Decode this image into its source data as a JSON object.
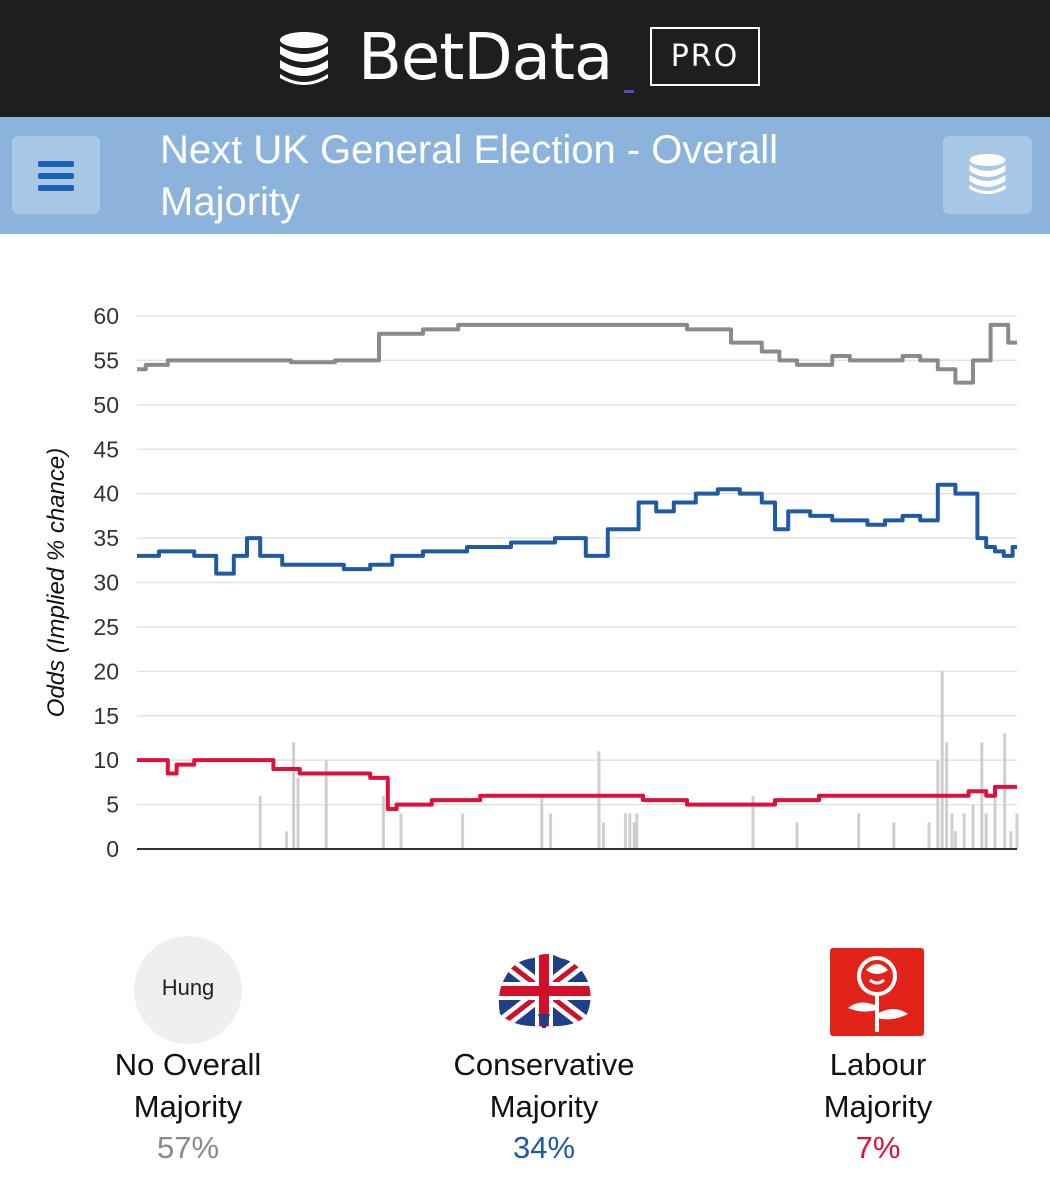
{
  "brand": {
    "name": "BetData",
    "badge": "PRO"
  },
  "page": {
    "title": "Next UK General Election - Overall Majority"
  },
  "icons": {
    "menu": "menu-icon",
    "data": "database-icon",
    "logo": "database-icon"
  },
  "chart_data": {
    "type": "line",
    "ylabel": "Odds (Implied % chance)",
    "xlabel": "",
    "ylim": [
      0,
      60
    ],
    "yticks": [
      0,
      5,
      10,
      15,
      20,
      25,
      30,
      35,
      40,
      45,
      50,
      55,
      60
    ],
    "grid": true,
    "series": [
      {
        "name": "No Overall Majority",
        "color": "#8a8a8a",
        "x": [
          0,
          2,
          5,
          10,
          15,
          20,
          25,
          30,
          35,
          38,
          40,
          45,
          50,
          55,
          60,
          65,
          70,
          72,
          74,
          76,
          78,
          80,
          82,
          84,
          86,
          88,
          90,
          92,
          94,
          96,
          98,
          100
        ],
        "values": [
          54,
          54.5,
          55,
          55,
          55,
          54.8,
          55,
          58,
          58.5,
          59,
          59,
          59,
          59,
          59,
          59,
          58.5,
          57,
          56,
          55,
          54.5,
          54.5,
          55.5,
          55,
          55,
          55,
          55.5,
          55,
          54,
          52.5,
          55,
          59,
          57
        ]
      },
      {
        "name": "Conservative Majority",
        "color": "#1f5aa5",
        "x": [
          0,
          5,
          8,
          10,
          12,
          13,
          15,
          18,
          20,
          22,
          25,
          28,
          30,
          35,
          40,
          45,
          50,
          52,
          55,
          56,
          58,
          60,
          62,
          65,
          67,
          70,
          72,
          73,
          75,
          78,
          80,
          82,
          84,
          86,
          88,
          90,
          92,
          94,
          95,
          96,
          97,
          98,
          99,
          100
        ],
        "values": [
          33,
          33.5,
          33,
          31,
          33,
          35,
          33,
          32,
          32,
          32,
          31.5,
          32,
          33,
          33.5,
          34,
          34.5,
          35,
          33,
          36,
          36,
          39,
          38,
          39,
          40,
          40.5,
          40,
          39,
          36,
          38,
          37.5,
          37,
          37,
          36.5,
          37,
          37.5,
          37,
          41,
          40,
          40,
          35,
          34,
          33.5,
          33,
          34
        ]
      },
      {
        "name": "Labour Majority",
        "color": "#e0103c",
        "x": [
          0,
          3,
          4,
          5,
          8,
          10,
          14,
          17,
          20,
          25,
          28,
          29,
          30,
          32,
          35,
          38,
          40,
          42,
          45,
          50,
          55,
          60,
          65,
          70,
          75,
          80,
          85,
          88,
          90,
          92,
          94,
          95,
          96,
          97,
          98,
          100
        ],
        "values": [
          10,
          10,
          8.5,
          9.5,
          10,
          10,
          10,
          9,
          8.5,
          8.5,
          8,
          4.5,
          5,
          5,
          5.5,
          5.5,
          6,
          6,
          6,
          6,
          6,
          5.5,
          5,
          5,
          5.5,
          6,
          6,
          6,
          6,
          6,
          6,
          6.5,
          6.5,
          6,
          7,
          7
        ]
      }
    ],
    "volume": [
      {
        "x": 14,
        "v": 6
      },
      {
        "x": 17,
        "v": 2
      },
      {
        "x": 17.8,
        "v": 12
      },
      {
        "x": 18.3,
        "v": 8
      },
      {
        "x": 21.5,
        "v": 10
      },
      {
        "x": 28,
        "v": 6
      },
      {
        "x": 30,
        "v": 4
      },
      {
        "x": 37,
        "v": 4
      },
      {
        "x": 46,
        "v": 6
      },
      {
        "x": 47,
        "v": 4
      },
      {
        "x": 52.5,
        "v": 11
      },
      {
        "x": 53,
        "v": 3
      },
      {
        "x": 55.5,
        "v": 4
      },
      {
        "x": 56,
        "v": 4
      },
      {
        "x": 56.5,
        "v": 3
      },
      {
        "x": 56.8,
        "v": 4
      },
      {
        "x": 70,
        "v": 6
      },
      {
        "x": 75,
        "v": 3
      },
      {
        "x": 82,
        "v": 4
      },
      {
        "x": 86,
        "v": 3
      },
      {
        "x": 90,
        "v": 3
      },
      {
        "x": 91,
        "v": 10
      },
      {
        "x": 91.5,
        "v": 20
      },
      {
        "x": 92,
        "v": 12
      },
      {
        "x": 92.6,
        "v": 4
      },
      {
        "x": 93,
        "v": 2
      },
      {
        "x": 94,
        "v": 4
      },
      {
        "x": 95,
        "v": 5
      },
      {
        "x": 96,
        "v": 12
      },
      {
        "x": 96.5,
        "v": 4
      },
      {
        "x": 97.5,
        "v": 6
      },
      {
        "x": 98.6,
        "v": 13
      },
      {
        "x": 99.3,
        "v": 2
      },
      {
        "x": 100,
        "v": 4
      }
    ]
  },
  "outcomes": [
    {
      "badge": "Hung",
      "label_line1": "No Overall",
      "label_line2": "Majority",
      "percent": "57%",
      "color": "#8a8a8a",
      "icon": "hung-badge"
    },
    {
      "label_line1": "Conservative",
      "label_line2": "Majority",
      "percent": "34%",
      "color": "#1f5aa5",
      "icon": "conservative-logo-icon"
    },
    {
      "label_line1": "Labour",
      "label_line2": "Majority",
      "percent": "7%",
      "color": "#e0103c",
      "icon": "labour-rose-icon"
    }
  ]
}
